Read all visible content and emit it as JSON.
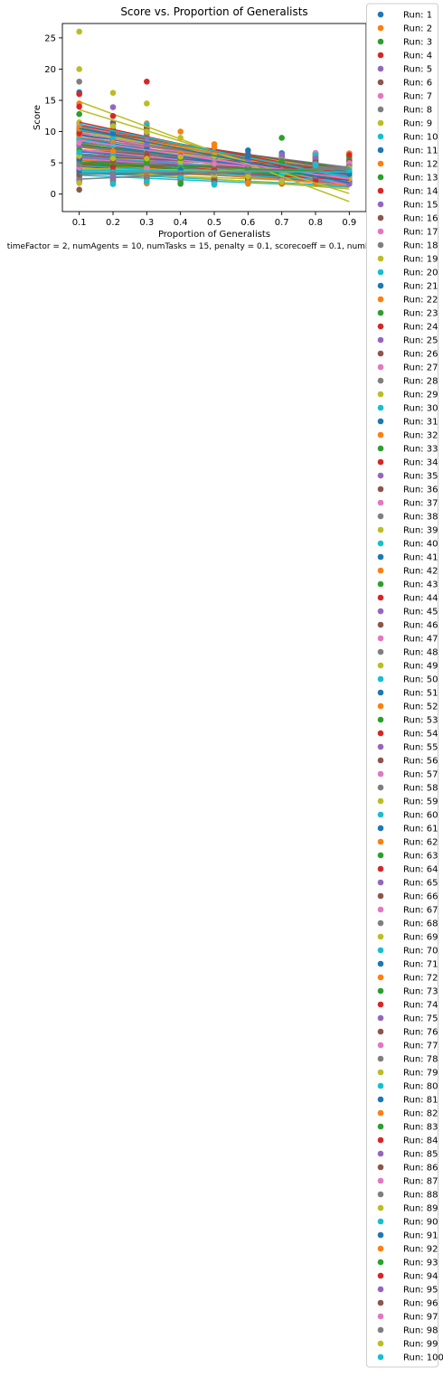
{
  "chart_data": {
    "type": "scatter",
    "title": "Score vs. Proportion of Generalists",
    "xlabel": "Proportion of Generalists",
    "ylabel": "Score",
    "caption": "timeFactor = 2, numAgents = 10, numTasks = 15, penalty = 0.1, scorecoeff = 0.1, numRuns = 100",
    "xlim": [
      0.05,
      0.95
    ],
    "ylim": [
      -2.8,
      27.3
    ],
    "xticks": [
      0.1,
      0.2,
      0.3,
      0.4,
      0.5,
      0.6,
      0.7,
      0.8,
      0.9
    ],
    "yticks": [
      0,
      5,
      10,
      15,
      20,
      25
    ],
    "grid": false,
    "legend_position": "outside-right",
    "palette": [
      "#1f77b4",
      "#ff7f0e",
      "#2ca02c",
      "#d62728",
      "#9467bd",
      "#8c564b",
      "#e377c2",
      "#7f7f7f",
      "#bcbd22",
      "#17becf"
    ],
    "legend_prefix": "Run: ",
    "runs": [
      1,
      2,
      3,
      4,
      5,
      6,
      7,
      8,
      9,
      10,
      11,
      12,
      13,
      14,
      15,
      16,
      17,
      18,
      19,
      20,
      21,
      22,
      23,
      24,
      25,
      26,
      27,
      28,
      29,
      30,
      31,
      32,
      33,
      34,
      35,
      36,
      37,
      38,
      39,
      40,
      41,
      42,
      43,
      44,
      45,
      46,
      47,
      48,
      49,
      50,
      51,
      52,
      53,
      54,
      55,
      56,
      57,
      58,
      59,
      60,
      61,
      62,
      63,
      64,
      65,
      66,
      67,
      68,
      69,
      70,
      71,
      72,
      73,
      74,
      75,
      76,
      77,
      78,
      79,
      80,
      81,
      82,
      83,
      84,
      85,
      86,
      87,
      88,
      89,
      90,
      91,
      92,
      93,
      94,
      95,
      96,
      97,
      98,
      99,
      100
    ],
    "highlighted_points": [
      {
        "run": 9,
        "x": 0.1,
        "y": 26.0
      },
      {
        "run": 9,
        "x": 0.1,
        "y": 20.0
      },
      {
        "run": 8,
        "x": 0.1,
        "y": 18.0
      },
      {
        "run": 11,
        "x": 0.1,
        "y": 16.3
      },
      {
        "run": 4,
        "x": 0.1,
        "y": 16.0
      },
      {
        "run": 2,
        "x": 0.1,
        "y": 14.5
      },
      {
        "run": 4,
        "x": 0.1,
        "y": 14.0
      },
      {
        "run": 3,
        "x": 0.1,
        "y": 12.8
      },
      {
        "run": 9,
        "x": 0.2,
        "y": 16.2
      },
      {
        "run": 5,
        "x": 0.2,
        "y": 13.9
      },
      {
        "run": 4,
        "x": 0.2,
        "y": 12.5
      },
      {
        "run": 4,
        "x": 0.3,
        "y": 18.0
      },
      {
        "run": 9,
        "x": 0.3,
        "y": 14.5
      },
      {
        "run": 9,
        "x": 0.3,
        "y": 10.0
      },
      {
        "run": 2,
        "x": 0.4,
        "y": 10.0
      },
      {
        "run": 9,
        "x": 0.4,
        "y": 9.0
      },
      {
        "run": 2,
        "x": 0.5,
        "y": 8.0
      },
      {
        "run": 2,
        "x": 0.5,
        "y": 7.5
      },
      {
        "run": 1,
        "x": 0.6,
        "y": 7.0
      },
      {
        "run": 1,
        "x": 0.6,
        "y": 6.0
      },
      {
        "run": 3,
        "x": 0.7,
        "y": 9.0
      },
      {
        "run": 3,
        "x": 0.7,
        "y": 5.3
      },
      {
        "run": 10,
        "x": 0.8,
        "y": 4.7
      },
      {
        "run": 2,
        "x": 0.6,
        "y": 1.8
      },
      {
        "run": 3,
        "x": 0.4,
        "y": 1.7
      },
      {
        "run": 10,
        "x": 0.2,
        "y": 1.6
      },
      {
        "run": 10,
        "x": 0.5,
        "y": 1.5
      },
      {
        "run": 6,
        "x": 0.1,
        "y": 0.7
      }
    ],
    "highlighted_lines": [
      {
        "run": 9,
        "x": [
          0.1,
          0.9
        ],
        "y": [
          14.8,
          -1.2
        ]
      },
      {
        "run": 9,
        "x": [
          0.1,
          0.9
        ],
        "y": [
          13.5,
          0.1
        ]
      },
      {
        "run": 4,
        "x": [
          0.1,
          0.9
        ],
        "y": [
          11.5,
          2.2
        ]
      },
      {
        "run": 1,
        "x": [
          0.1,
          0.9
        ],
        "y": [
          10.5,
          1.8
        ]
      },
      {
        "run": 10,
        "x": [
          0.1,
          0.9
        ],
        "y": [
          11.2,
          2.6
        ]
      },
      {
        "run": 7,
        "x": [
          0.1,
          0.9
        ],
        "y": [
          8.6,
          2.4
        ]
      },
      {
        "run": 8,
        "x": [
          0.1,
          0.9
        ],
        "y": [
          2.4,
          4.3
        ]
      },
      {
        "run": 8,
        "x": [
          0.1,
          0.9
        ],
        "y": [
          3.2,
          4.0
        ]
      },
      {
        "run": 3,
        "x": [
          0.1,
          0.9
        ],
        "y": [
          5.0,
          3.5
        ]
      },
      {
        "run": 10,
        "x": [
          0.1,
          0.9
        ],
        "y": [
          3.8,
          3.5
        ]
      }
    ],
    "series_summary": "100 runs, each a scatter of scores at x = 0.1..0.9 with a fitted line; most scores lie between 1 and 10"
  }
}
